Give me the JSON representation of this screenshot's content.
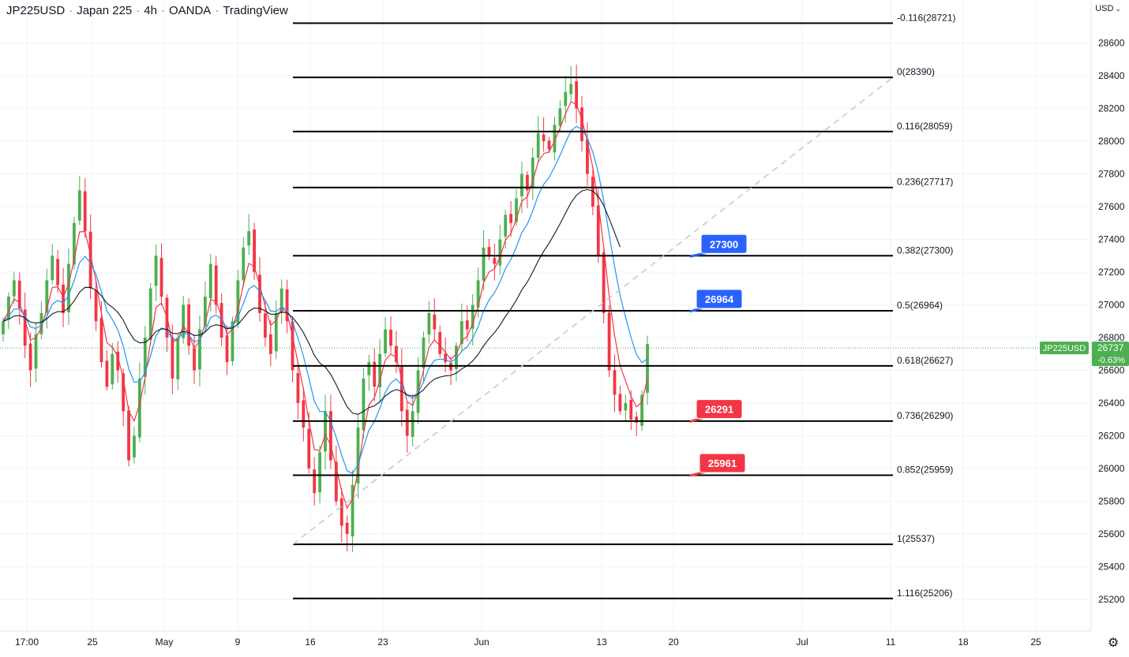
{
  "header": {
    "symbol": "JP225USD",
    "name": "Japan 225",
    "interval": "4h",
    "broker": "OANDA",
    "platform": "TradingView"
  },
  "currency_selector": {
    "label": "USD",
    "icon": "chevron-down-icon"
  },
  "settings": {
    "icon": "gear-icon"
  },
  "colors": {
    "up_candle": "#4caf50",
    "down_candle": "#f23645",
    "ema_fast": "#f23645",
    "ema_mid": "#2196f3",
    "ema_slow": "#131722",
    "label_blue": "#2962ff",
    "label_red": "#f23645",
    "price_line": "#4caf50",
    "fib_line": "#000000"
  },
  "chart_data": {
    "type": "candlestick",
    "title": "JP225USD · Japan 225 · 4h · OANDA · TradingView",
    "ylim": [
      25050,
      28880
    ],
    "y_ticks": [
      25200,
      25400,
      25600,
      25800,
      26000,
      26200,
      26400,
      26600,
      26800,
      27000,
      27200,
      27400,
      27600,
      27800,
      28000,
      28200,
      28400,
      28600
    ],
    "x_ticks": [
      "17:00",
      "25",
      "May",
      "9",
      "16",
      "23",
      "Jun",
      "13",
      "20",
      "Jul",
      "11",
      "18",
      "25"
    ],
    "grid": true,
    "last_price": {
      "symbol": "JP225USD",
      "value": "26737",
      "change": "-0.63%"
    },
    "fib_levels": [
      {
        "label": "-0.116(28721)",
        "value": 28721
      },
      {
        "label": "0(28390)",
        "value": 28390
      },
      {
        "label": "0.116(28059)",
        "value": 28059
      },
      {
        "label": "0.236(27717)",
        "value": 27717
      },
      {
        "label": "0.382(27300)",
        "value": 27300
      },
      {
        "label": "0.5(26964)",
        "value": 26964
      },
      {
        "label": "0.618(26627)",
        "value": 26627
      },
      {
        "label": "0.736(26290)",
        "value": 26290
      },
      {
        "label": "0.852(25959)",
        "value": 25959
      },
      {
        "label": "1(25537)",
        "value": 25537
      },
      {
        "label": "1.116(25206)",
        "value": 25206
      }
    ],
    "fib_anchor": {
      "low": 25537,
      "high": 28390
    },
    "callouts": [
      {
        "text": "27300",
        "value": 27300,
        "color": "blue"
      },
      {
        "text": "26964",
        "value": 26964,
        "color": "blue"
      },
      {
        "text": "26291",
        "value": 26291,
        "color": "red"
      },
      {
        "text": "25961",
        "value": 25961,
        "color": "red"
      }
    ],
    "close_series": [
      26900,
      27050,
      27150,
      26980,
      26750,
      26600,
      26820,
      26950,
      27150,
      27300,
      27120,
      26950,
      27250,
      27500,
      27700,
      27450,
      27100,
      26900,
      26650,
      26500,
      26700,
      26600,
      26350,
      26050,
      26200,
      26550,
      26800,
      27100,
      27300,
      27050,
      26800,
      26550,
      26800,
      27000,
      26750,
      26600,
      26850,
      27050,
      27250,
      27000,
      26800,
      26650,
      26900,
      27150,
      27350,
      27450,
      27200,
      26950,
      26800,
      26700,
      26950,
      27100,
      26900,
      26600,
      26400,
      26250,
      26000,
      25850,
      26100,
      26350,
      26050,
      25800,
      25650,
      25600,
      25900,
      26250,
      26550,
      26650,
      26500,
      26700,
      26850,
      26750,
      26650,
      26350,
      26200,
      26350,
      26600,
      26800,
      26950,
      26850,
      26700,
      26650,
      26600,
      26750,
      26900,
      26850,
      27000,
      27150,
      27350,
      27300,
      27250,
      27400,
      27550,
      27500,
      27650,
      27800,
      27700,
      27900,
      28050,
      28000,
      27950,
      28100,
      28200,
      28300,
      28350,
      28200,
      28000,
      27800,
      27600,
      27300,
      26950,
      26600,
      26450,
      26350,
      26400,
      26300,
      26280,
      26450,
      26760
    ]
  }
}
